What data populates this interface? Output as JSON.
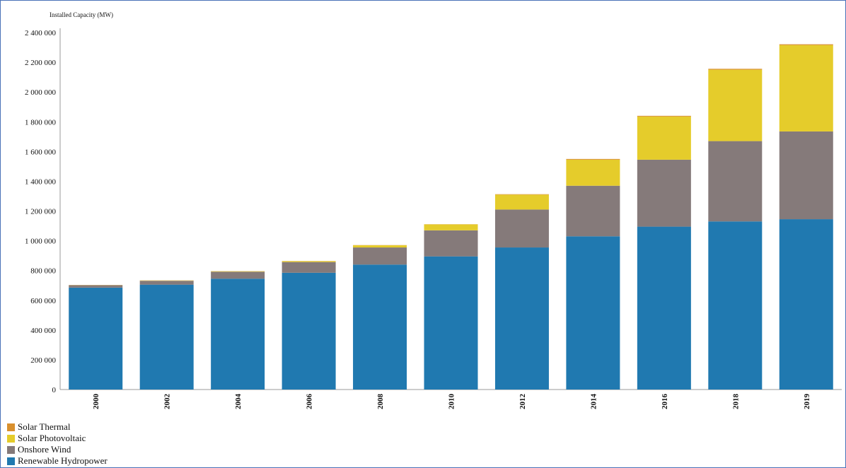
{
  "chart_data": {
    "type": "bar",
    "stacked": true,
    "ylabel": "Installed Capacity (MW)",
    "xlabel": "",
    "categories": [
      "2000",
      "2002",
      "2004",
      "2006",
      "2008",
      "2010",
      "2012",
      "2014",
      "2016",
      "2018",
      "2019"
    ],
    "ylim": [
      0,
      2400000
    ],
    "yticks": [
      0,
      200000,
      400000,
      600000,
      800000,
      1000000,
      1200000,
      1400000,
      1600000,
      1800000,
      2000000,
      2200000,
      2400000
    ],
    "ytick_labels": [
      "0",
      "200 000",
      "400 000",
      "600 000",
      "800 000",
      "1 000 000",
      "1 200 000",
      "1 400 000",
      "1 600 000",
      "1 800 000",
      "2 000 000",
      "2 200 000",
      "2 400 000"
    ],
    "series": [
      {
        "name": "Renewable Hydropower",
        "color": "#2079b0",
        "values": [
          685000,
          705000,
          745000,
          785000,
          840000,
          895000,
          955000,
          1030000,
          1095000,
          1130000,
          1145000
        ]
      },
      {
        "name": "Onshore Wind",
        "color": "#857a7a",
        "values": [
          16000,
          26000,
          47000,
          72000,
          115000,
          175000,
          255000,
          340000,
          450000,
          540000,
          590000
        ]
      },
      {
        "name": "Solar Photovoltaic",
        "color": "#e5cc2b",
        "values": [
          1000,
          2000,
          3000,
          6000,
          15000,
          40000,
          100000,
          175000,
          290000,
          480000,
          580000
        ]
      },
      {
        "name": "Solar Thermal",
        "color": "#d9902e",
        "values": [
          1000,
          1000,
          1000,
          1000,
          1000,
          1000,
          3000,
          5000,
          5000,
          6000,
          6000
        ]
      }
    ],
    "legend_placement": "bottom-left",
    "grid": false
  }
}
